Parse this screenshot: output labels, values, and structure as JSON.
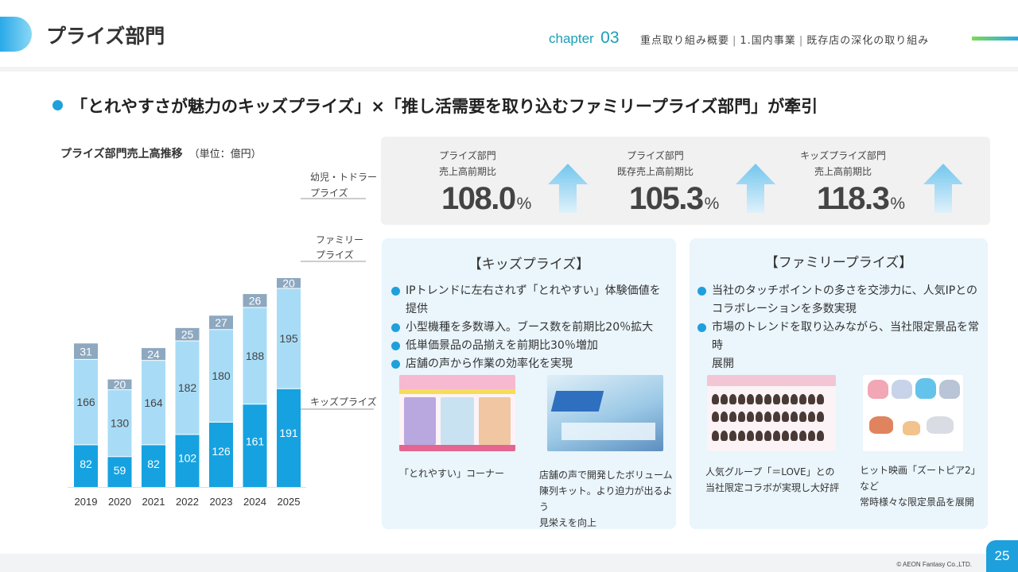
{
  "header": {
    "title": "プライズ部門",
    "chapter_word": "chapter",
    "chapter_number": "03",
    "breadcrumb": [
      "重点取り組み概要",
      "1.国内事業",
      "既存店の深化の取り組み"
    ]
  },
  "lead": "「とれやすさが魅力のキッズプライズ」×「推し活需要を取り込むファミリープライズ部門」が牽引",
  "chart_data": {
    "type": "bar",
    "stacked": true,
    "title": "プライズ部門売上高推移",
    "unit": "（単位：億円）",
    "categories": [
      "2019",
      "2020",
      "2021",
      "2022",
      "2023",
      "2024",
      "2025"
    ],
    "series": [
      {
        "name": "キッズプライズ",
        "values": [
          82,
          59,
          82,
          102,
          126,
          161,
          191
        ],
        "color": "#16a2e0"
      },
      {
        "name": "ファミリー プライズ",
        "values": [
          166,
          130,
          164,
          182,
          180,
          188,
          195
        ],
        "color": "#a8dcf6"
      },
      {
        "name": "幼児・トドラー プライズ",
        "values": [
          31,
          20,
          24,
          25,
          27,
          26,
          20
        ],
        "color": "#8da8bf"
      }
    ],
    "legend": {
      "kids": "キッズプライズ",
      "family_line1": "ファミリー",
      "family_line2": "プライズ",
      "toddler_line1": "幼児・トドラー",
      "toddler_line2": "プライズ"
    },
    "legend_placement": "right",
    "grid": false
  },
  "stats": [
    {
      "label_line1": "プライズ部門",
      "label_line2": "売上高前期比",
      "value": "108.0",
      "unit": "%"
    },
    {
      "label_line1": "プライズ部門",
      "label_line2": "既存売上高前期比",
      "value": "105.3",
      "unit": "%"
    },
    {
      "label_line1": "キッズプライズ部門",
      "label_line2": "売上高前期比",
      "value": "118.3",
      "unit": "%"
    }
  ],
  "kids_card": {
    "title": "【キッズプライズ】",
    "bullets": [
      "IPトレンドに左右されず「とれやすい」体験価値を提供",
      "小型機種を多数導入。ブース数を前期比20％拡大",
      "低単価景品の品揃えを前期比30％増加",
      "店舗の声から作業の効率化を実現"
    ],
    "caption1": "「とれやすい」コーナー",
    "caption2_line1": "店舗の声で開発したボリューム",
    "caption2_line2": "陳列キット。より迫力が出るよう",
    "caption2_line3": "見栄えを向上"
  },
  "family_card": {
    "title": "【ファミリープライズ】",
    "bullet1_line1": "当社のタッチポイントの多さを交渉力に、人気IPとの",
    "bullet1_line2": "コラボレーションを多数実現",
    "bullet2_line1": "市場のトレンドを取り込みながら、当社限定景品を常時",
    "bullet2_line2": "展開",
    "caption1_line1": "人気グループ「＝LOVE」との",
    "caption1_line2": "当社限定コラボが実現し大好評",
    "caption2_line1": "ヒット映画「ズートピア2」など",
    "caption2_line2": "常時様々な限定景品を展開"
  },
  "footer": {
    "copyright": "© AEON Fantasy Co.,LTD.",
    "page_number": "25"
  }
}
